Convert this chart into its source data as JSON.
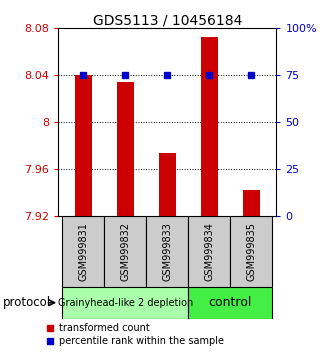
{
  "title": "GDS5113 / 10456184",
  "samples": [
    "GSM999831",
    "GSM999832",
    "GSM999833",
    "GSM999834",
    "GSM999835"
  ],
  "red_values": [
    8.04,
    8.034,
    7.974,
    8.073,
    7.942
  ],
  "blue_values": [
    0.75,
    0.75,
    0.75,
    0.75,
    0.75
  ],
  "ylim_left": [
    7.92,
    8.08
  ],
  "ylim_right": [
    0.0,
    1.0
  ],
  "yticks_left": [
    7.92,
    7.96,
    8.0,
    8.04,
    8.08
  ],
  "ytick_labels_left": [
    "7.92",
    "7.96",
    "8",
    "8.04",
    "8.08"
  ],
  "yticks_right": [
    0.0,
    0.25,
    0.5,
    0.75,
    1.0
  ],
  "ytick_labels_right": [
    "0",
    "25",
    "50",
    "75",
    "100%"
  ],
  "bar_bottom": 7.92,
  "bar_color": "#cc0000",
  "dot_color": "#0000cc",
  "protocol_groups": [
    {
      "label": "Grainyhead-like 2 depletion",
      "indices": [
        0,
        1,
        2
      ],
      "color": "#aaffaa"
    },
    {
      "label": "control",
      "indices": [
        3,
        4
      ],
      "color": "#44ee44"
    }
  ],
  "protocol_label": "protocol",
  "legend_red": "transformed count",
  "legend_blue": "percentile rank within the sample",
  "left_axis_color": "#cc0000",
  "right_axis_color": "#0000cc",
  "tick_bg_color": "#cccccc",
  "bar_width": 0.4
}
